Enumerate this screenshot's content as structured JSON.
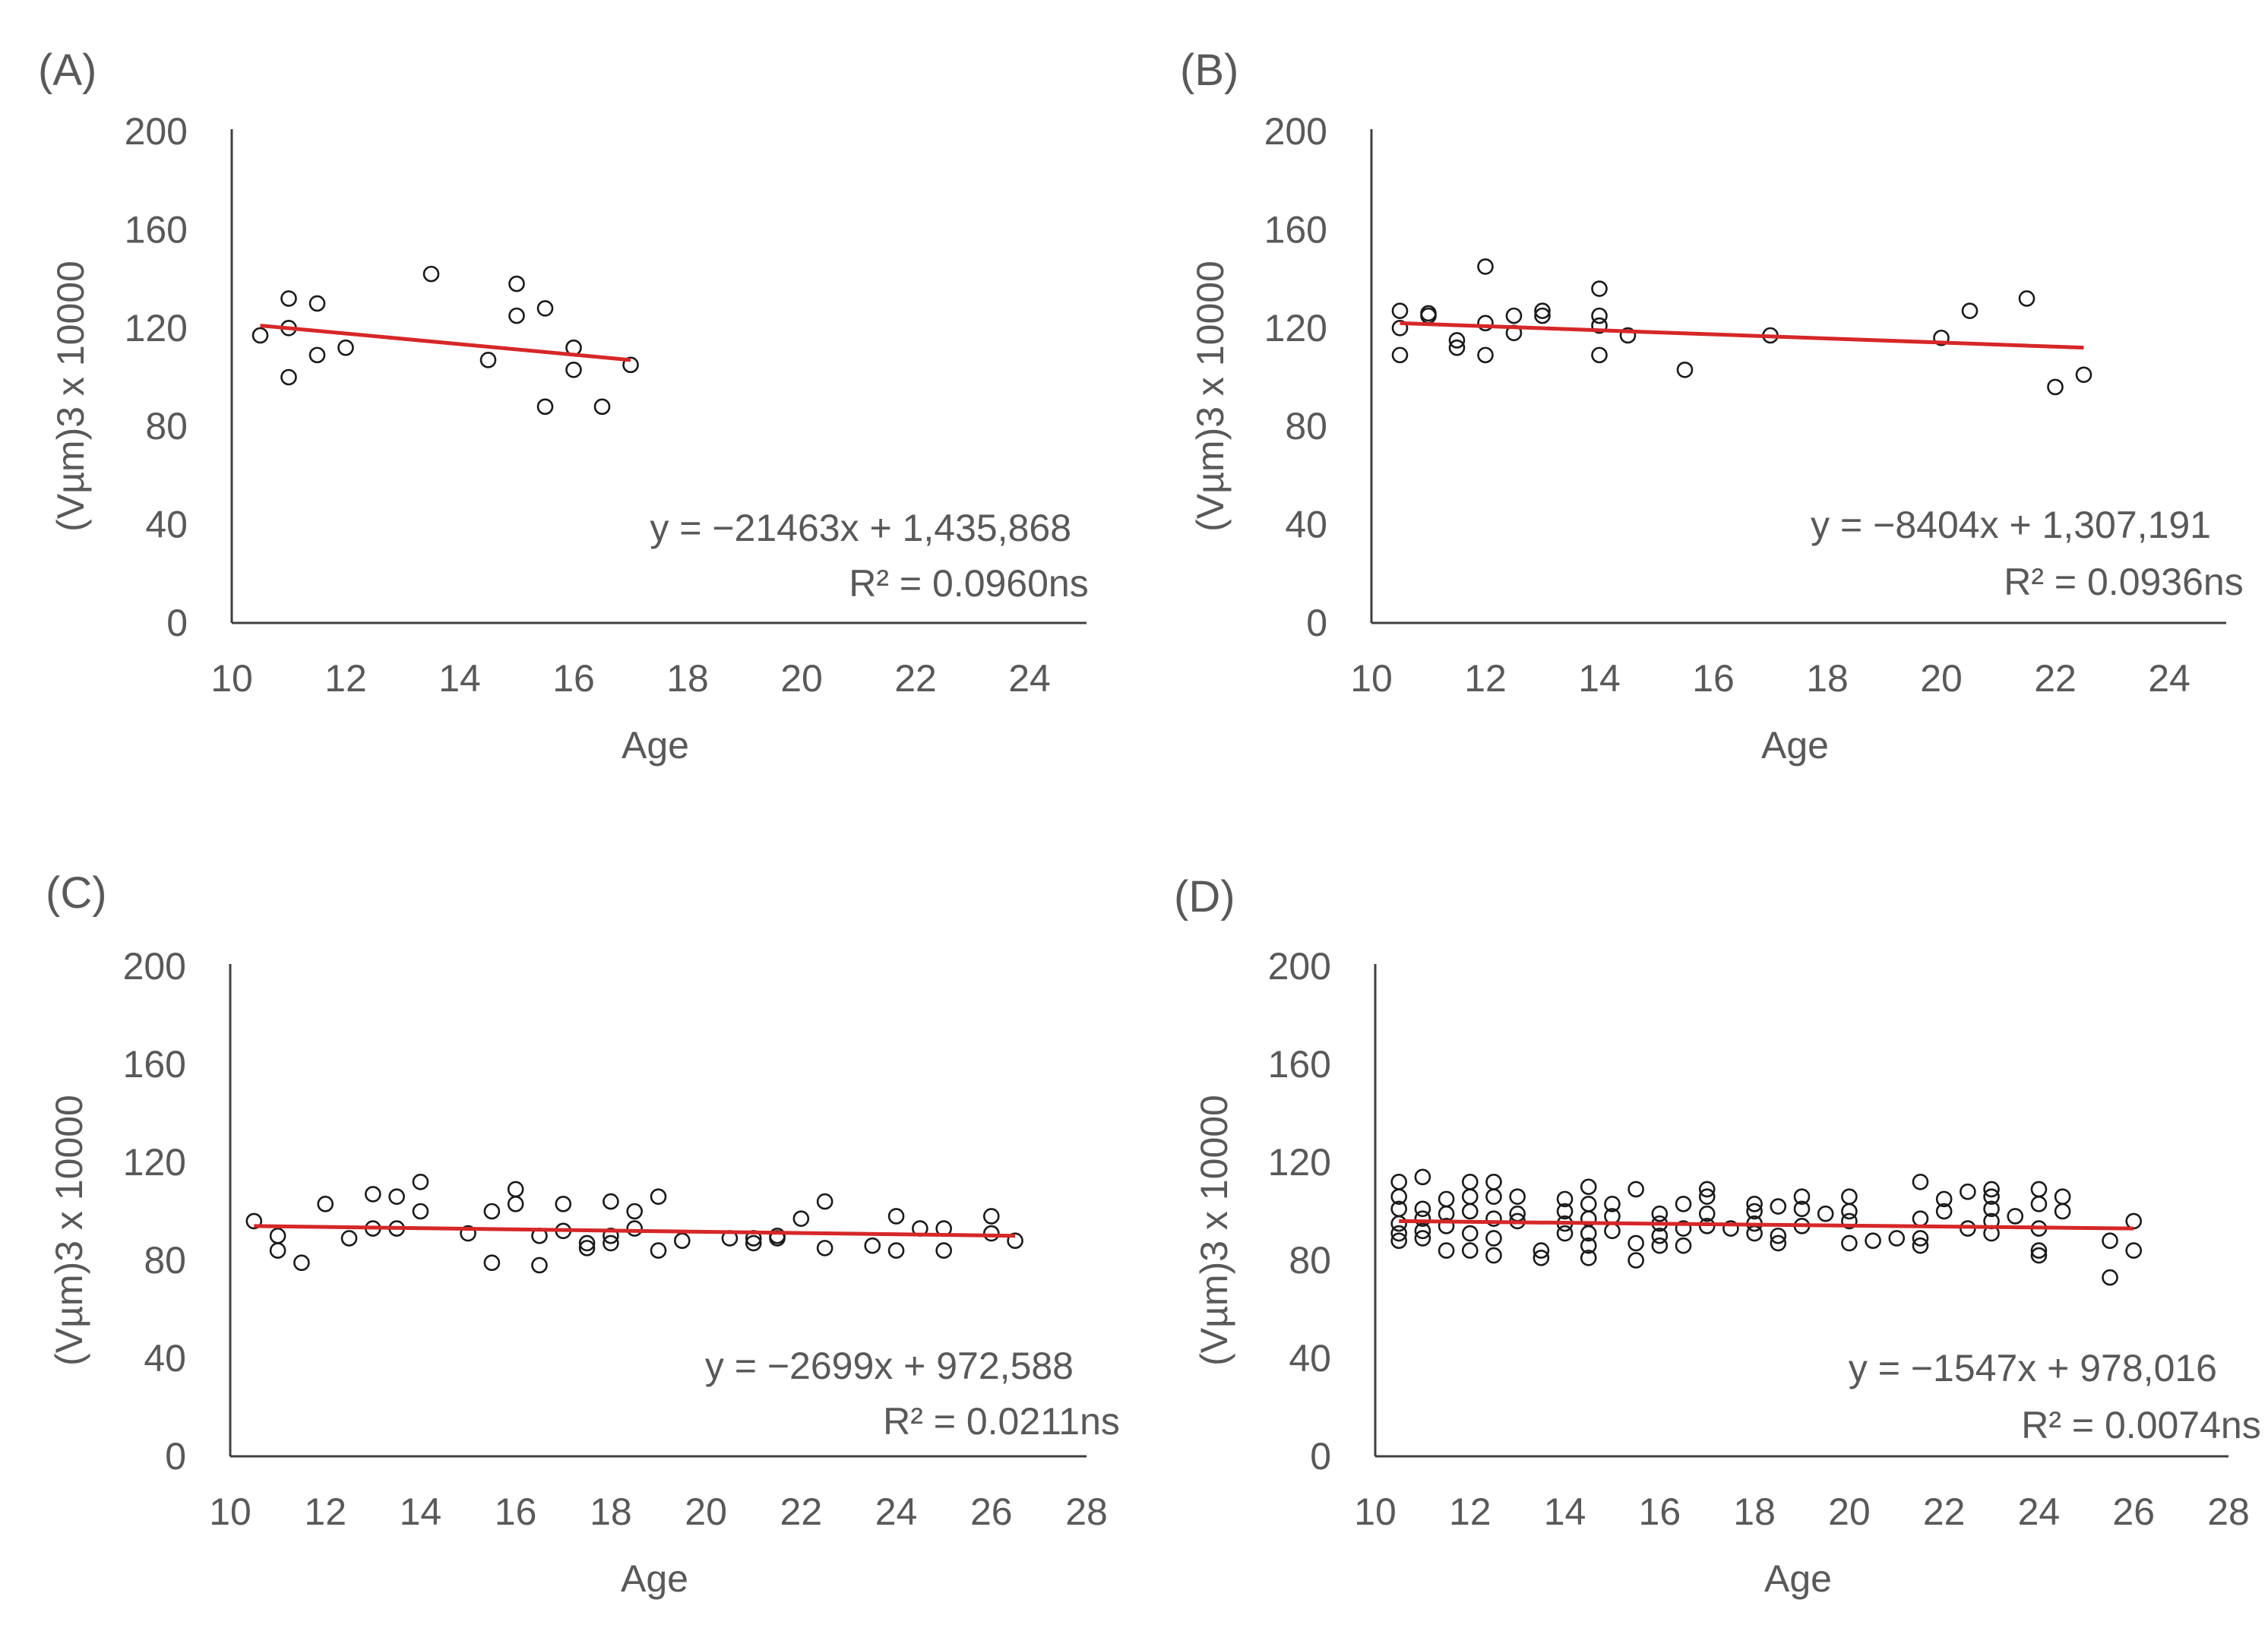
{
  "chart_data": [
    {
      "panel": "(A)",
      "type": "scatter",
      "xlabel": "Age",
      "ylabel": "(Vµm)3 x 10000",
      "xlim": [
        10,
        25
      ],
      "xticks": [
        10,
        12,
        14,
        16,
        18,
        20,
        22,
        24
      ],
      "ylim": [
        0,
        200
      ],
      "yticks": [
        0,
        40,
        80,
        120,
        160,
        200
      ],
      "points": [
        [
          10.5,
          117
        ],
        [
          11,
          132
        ],
        [
          11,
          120
        ],
        [
          11,
          100
        ],
        [
          11.5,
          130
        ],
        [
          11.5,
          109
        ],
        [
          12,
          112
        ],
        [
          13.5,
          142
        ],
        [
          14.5,
          107
        ],
        [
          15,
          138
        ],
        [
          15,
          125
        ],
        [
          15.5,
          128
        ],
        [
          15.5,
          88
        ],
        [
          16,
          112
        ],
        [
          16,
          103
        ],
        [
          16.5,
          88
        ],
        [
          17,
          105
        ]
      ],
      "trend_line": {
        "x": [
          10.5,
          17
        ],
        "y": [
          121,
          107
        ],
        "color": "#d62728"
      },
      "equation": "y = −21463x + 1,435,868",
      "r_squared": "R² = 0.0960ns"
    },
    {
      "panel": "(B)",
      "type": "scatter",
      "xlabel": "Age",
      "ylabel": "(Vµm)3 x 10000",
      "xlim": [
        10,
        25
      ],
      "xticks": [
        10,
        12,
        14,
        16,
        18,
        20,
        22,
        24
      ],
      "ylim": [
        0,
        200
      ],
      "yticks": [
        0,
        40,
        80,
        120,
        160,
        200
      ],
      "points": [
        [
          10.5,
          127
        ],
        [
          10.5,
          120
        ],
        [
          10.5,
          109
        ],
        [
          11,
          126
        ],
        [
          11,
          125
        ],
        [
          11.5,
          115
        ],
        [
          11.5,
          112
        ],
        [
          12,
          145
        ],
        [
          12,
          122
        ],
        [
          12,
          109
        ],
        [
          12.5,
          125
        ],
        [
          12.5,
          118
        ],
        [
          13,
          127
        ],
        [
          13,
          125
        ],
        [
          14,
          136
        ],
        [
          14,
          125
        ],
        [
          14,
          121
        ],
        [
          14,
          109
        ],
        [
          14.5,
          117
        ],
        [
          15.5,
          103
        ],
        [
          17,
          117
        ],
        [
          20,
          116
        ],
        [
          20.5,
          127
        ],
        [
          21.5,
          132
        ],
        [
          22,
          96
        ],
        [
          22.5,
          101
        ]
      ],
      "trend_line": {
        "x": [
          10.5,
          22.5
        ],
        "y": [
          122,
          112
        ],
        "color": "#d62728"
      },
      "equation": "y = −8404x + 1,307,191",
      "r_squared": "R² = 0.0936ns"
    },
    {
      "panel": "(C)",
      "type": "scatter",
      "xlabel": "Age",
      "ylabel": "(Vµm)3 x 10000",
      "xlim": [
        10,
        28
      ],
      "xticks": [
        10,
        12,
        14,
        16,
        18,
        20,
        22,
        24,
        26,
        28
      ],
      "ylim": [
        0,
        200
      ],
      "yticks": [
        0,
        40,
        80,
        120,
        160,
        200
      ],
      "points": [
        [
          10.5,
          96
        ],
        [
          11,
          90
        ],
        [
          11,
          84
        ],
        [
          11.5,
          79
        ],
        [
          12,
          103
        ],
        [
          12.5,
          89
        ],
        [
          13,
          107
        ],
        [
          13,
          93
        ],
        [
          13.5,
          106
        ],
        [
          13.5,
          93
        ],
        [
          14,
          112
        ],
        [
          14,
          100
        ],
        [
          15,
          91
        ],
        [
          15.5,
          100
        ],
        [
          15.5,
          79
        ],
        [
          16,
          109
        ],
        [
          16,
          103
        ],
        [
          16.5,
          90
        ],
        [
          16.5,
          78
        ],
        [
          17,
          103
        ],
        [
          17,
          92
        ],
        [
          17.5,
          87
        ],
        [
          17.5,
          85
        ],
        [
          18,
          104
        ],
        [
          18,
          90
        ],
        [
          18,
          87
        ],
        [
          18.5,
          100
        ],
        [
          18.5,
          93
        ],
        [
          19,
          106
        ],
        [
          19,
          84
        ],
        [
          19.5,
          88
        ],
        [
          20.5,
          89
        ],
        [
          21,
          89
        ],
        [
          21,
          87
        ],
        [
          21.5,
          90
        ],
        [
          21.5,
          89
        ],
        [
          22,
          97
        ],
        [
          22.5,
          104
        ],
        [
          22.5,
          85
        ],
        [
          23.5,
          86
        ],
        [
          24,
          98
        ],
        [
          24,
          84
        ],
        [
          24.5,
          93
        ],
        [
          25,
          93
        ],
        [
          25,
          84
        ],
        [
          26,
          98
        ],
        [
          26,
          91
        ],
        [
          26.5,
          88
        ]
      ],
      "trend_line": {
        "x": [
          10.5,
          26.5
        ],
        "y": [
          94,
          90
        ],
        "color": "#d62728"
      },
      "equation": "y = −2699x + 972,588",
      "r_squared": "R² = 0.0211ns"
    },
    {
      "panel": "(D)",
      "type": "scatter",
      "xlabel": "Age",
      "ylabel": "(Vµm)3 x 10000",
      "xlim": [
        10,
        28
      ],
      "xticks": [
        10,
        12,
        14,
        16,
        18,
        20,
        22,
        24,
        26,
        28
      ],
      "ylim": [
        0,
        200
      ],
      "yticks": [
        0,
        40,
        80,
        120,
        160,
        200
      ],
      "points": [
        [
          10.5,
          112
        ],
        [
          10.5,
          106
        ],
        [
          10.5,
          101
        ],
        [
          10.5,
          95
        ],
        [
          10.5,
          91
        ],
        [
          10.5,
          88
        ],
        [
          11,
          114
        ],
        [
          11,
          101
        ],
        [
          11,
          97
        ],
        [
          11,
          92
        ],
        [
          11,
          89
        ],
        [
          11.5,
          105
        ],
        [
          11.5,
          99
        ],
        [
          11.5,
          94
        ],
        [
          11.5,
          84
        ],
        [
          12,
          112
        ],
        [
          12,
          106
        ],
        [
          12,
          100
        ],
        [
          12,
          91
        ],
        [
          12,
          84
        ],
        [
          12.5,
          112
        ],
        [
          12.5,
          106
        ],
        [
          12.5,
          97
        ],
        [
          12.5,
          89
        ],
        [
          12.5,
          82
        ],
        [
          13,
          106
        ],
        [
          13,
          99
        ],
        [
          13,
          96
        ],
        [
          13.5,
          84
        ],
        [
          13.5,
          81
        ],
        [
          14,
          105
        ],
        [
          14,
          100
        ],
        [
          14,
          95
        ],
        [
          14,
          91
        ],
        [
          14.5,
          110
        ],
        [
          14.5,
          103
        ],
        [
          14.5,
          97
        ],
        [
          14.5,
          91
        ],
        [
          14.5,
          86
        ],
        [
          14.5,
          81
        ],
        [
          15,
          103
        ],
        [
          15,
          98
        ],
        [
          15,
          92
        ],
        [
          15.5,
          109
        ],
        [
          15.5,
          87
        ],
        [
          15.5,
          80
        ],
        [
          16,
          99
        ],
        [
          16,
          95
        ],
        [
          16,
          90
        ],
        [
          16,
          86
        ],
        [
          16.5,
          103
        ],
        [
          16.5,
          93
        ],
        [
          16.5,
          86
        ],
        [
          17,
          109
        ],
        [
          17,
          106
        ],
        [
          17,
          99
        ],
        [
          17,
          94
        ],
        [
          17.5,
          93
        ],
        [
          18,
          103
        ],
        [
          18,
          100
        ],
        [
          18,
          95
        ],
        [
          18,
          91
        ],
        [
          18.5,
          102
        ],
        [
          18.5,
          90
        ],
        [
          18.5,
          87
        ],
        [
          19,
          106
        ],
        [
          19,
          101
        ],
        [
          19,
          94
        ],
        [
          19.5,
          99
        ],
        [
          20,
          106
        ],
        [
          20,
          100
        ],
        [
          20,
          96
        ],
        [
          20,
          87
        ],
        [
          20.5,
          88
        ],
        [
          21,
          89
        ],
        [
          21.5,
          112
        ],
        [
          21.5,
          97
        ],
        [
          21.5,
          89
        ],
        [
          21.5,
          86
        ],
        [
          22,
          105
        ],
        [
          22,
          100
        ],
        [
          22.5,
          108
        ],
        [
          22.5,
          93
        ],
        [
          23,
          109
        ],
        [
          23,
          106
        ],
        [
          23,
          101
        ],
        [
          23,
          96
        ],
        [
          23,
          91
        ],
        [
          23.5,
          98
        ],
        [
          24,
          109
        ],
        [
          24,
          103
        ],
        [
          24,
          93
        ],
        [
          24,
          84
        ],
        [
          24,
          82
        ],
        [
          24.5,
          106
        ],
        [
          24.5,
          100
        ],
        [
          25.5,
          88
        ],
        [
          25.5,
          73
        ],
        [
          26,
          96
        ],
        [
          26,
          84
        ]
      ],
      "trend_line": {
        "x": [
          10.5,
          26
        ],
        "y": [
          96,
          93
        ],
        "color": "#d62728"
      },
      "equation": "y = −1547x + 978,016",
      "r_squared": "R² = 0.0074ns"
    }
  ]
}
